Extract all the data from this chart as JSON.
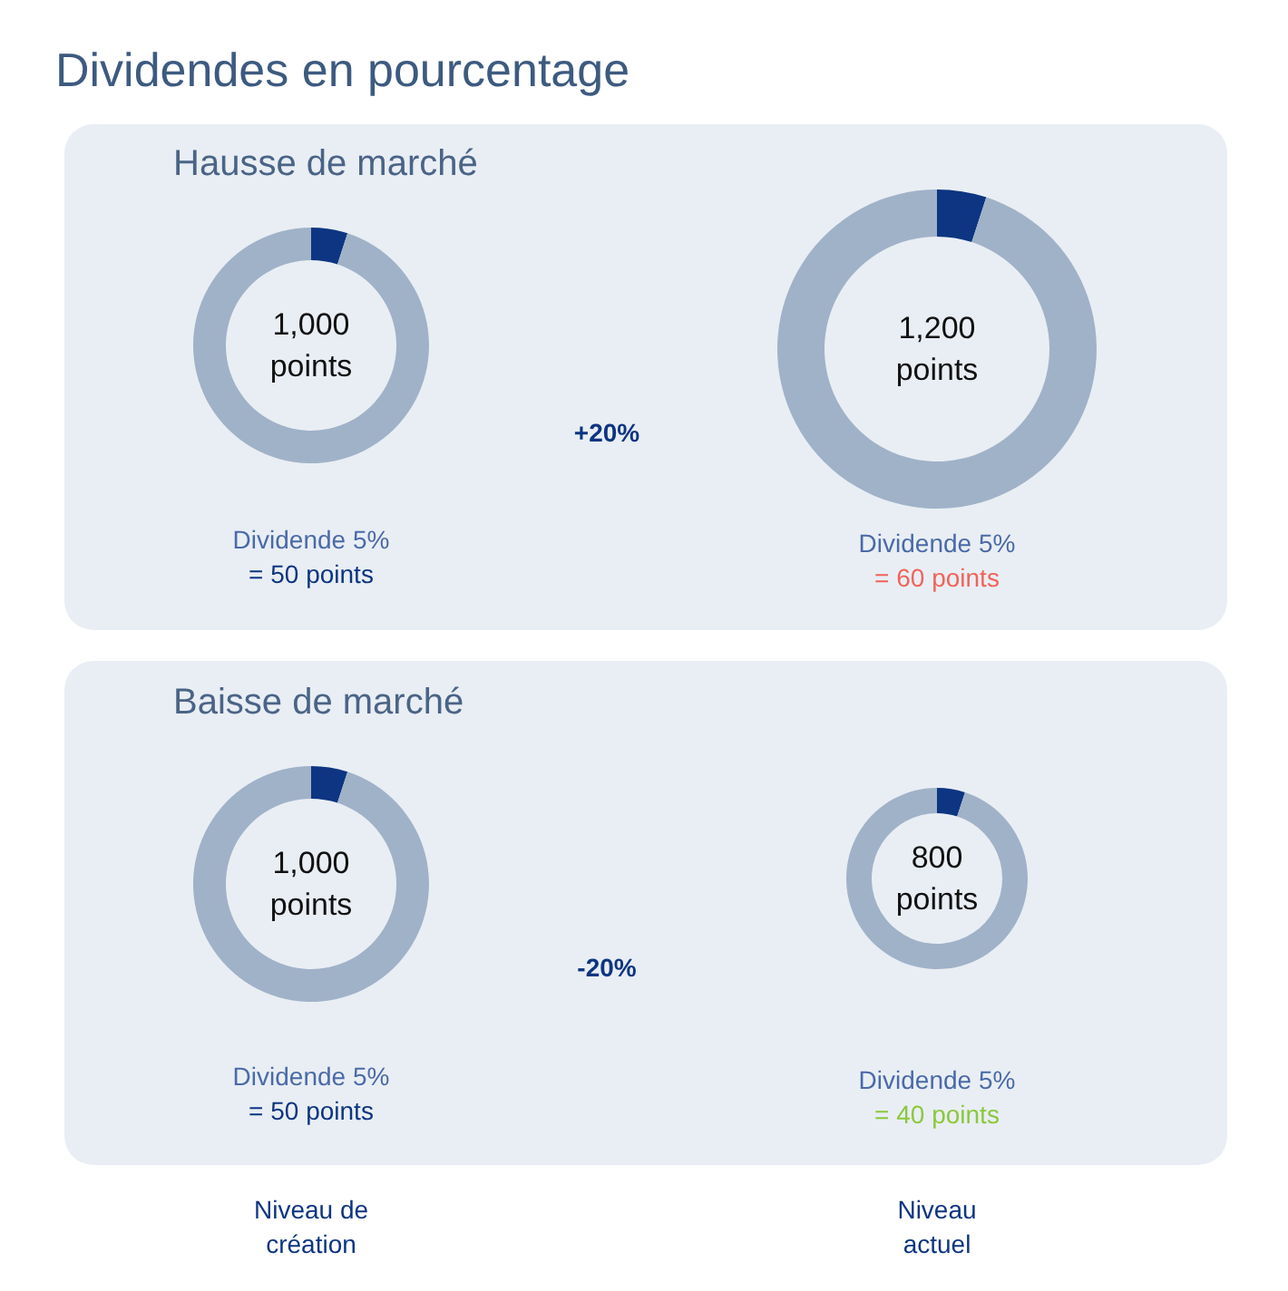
{
  "chart_data": [
    {
      "type": "other",
      "title": "Dividendes en pourcentage",
      "annotations": [
        "Niveau de\ncréation",
        "Niveau\nactuel"
      ]
    },
    {
      "type": "donut",
      "title": "Hausse de marché",
      "categories": [
        null,
        null
      ],
      "values": [
        5,
        95
      ],
      "colors": [
        "#0d3581",
        "#a0b2c8"
      ],
      "annotations": [
        "1,000\npoints",
        "Dividende 5%",
        "= 50 points"
      ]
    },
    {
      "type": "donut",
      "categories": [
        null,
        null
      ],
      "values": [
        5,
        95
      ],
      "colors": [
        "#0d3581",
        "#a0b2c8"
      ],
      "annotations": [
        "1,200\npoints",
        "Dividende 5%",
        "= 60 points",
        "+20%"
      ]
    },
    {
      "type": "donut",
      "title": "Baisse de marché",
      "categories": [
        null,
        null
      ],
      "values": [
        5,
        95
      ],
      "colors": [
        "#0d3581",
        "#a0b2c8"
      ],
      "annotations": [
        "1,000\npoints",
        "Dividende 5%",
        "= 50 points"
      ]
    },
    {
      "type": "donut",
      "categories": [
        null,
        null
      ],
      "values": [
        5,
        95
      ],
      "colors": [
        "#0d3581",
        "#a0b2c8"
      ],
      "annotations": [
        "800\npoints",
        "Dividende 5%",
        "= 40 points",
        "-20%"
      ]
    }
  ]
}
